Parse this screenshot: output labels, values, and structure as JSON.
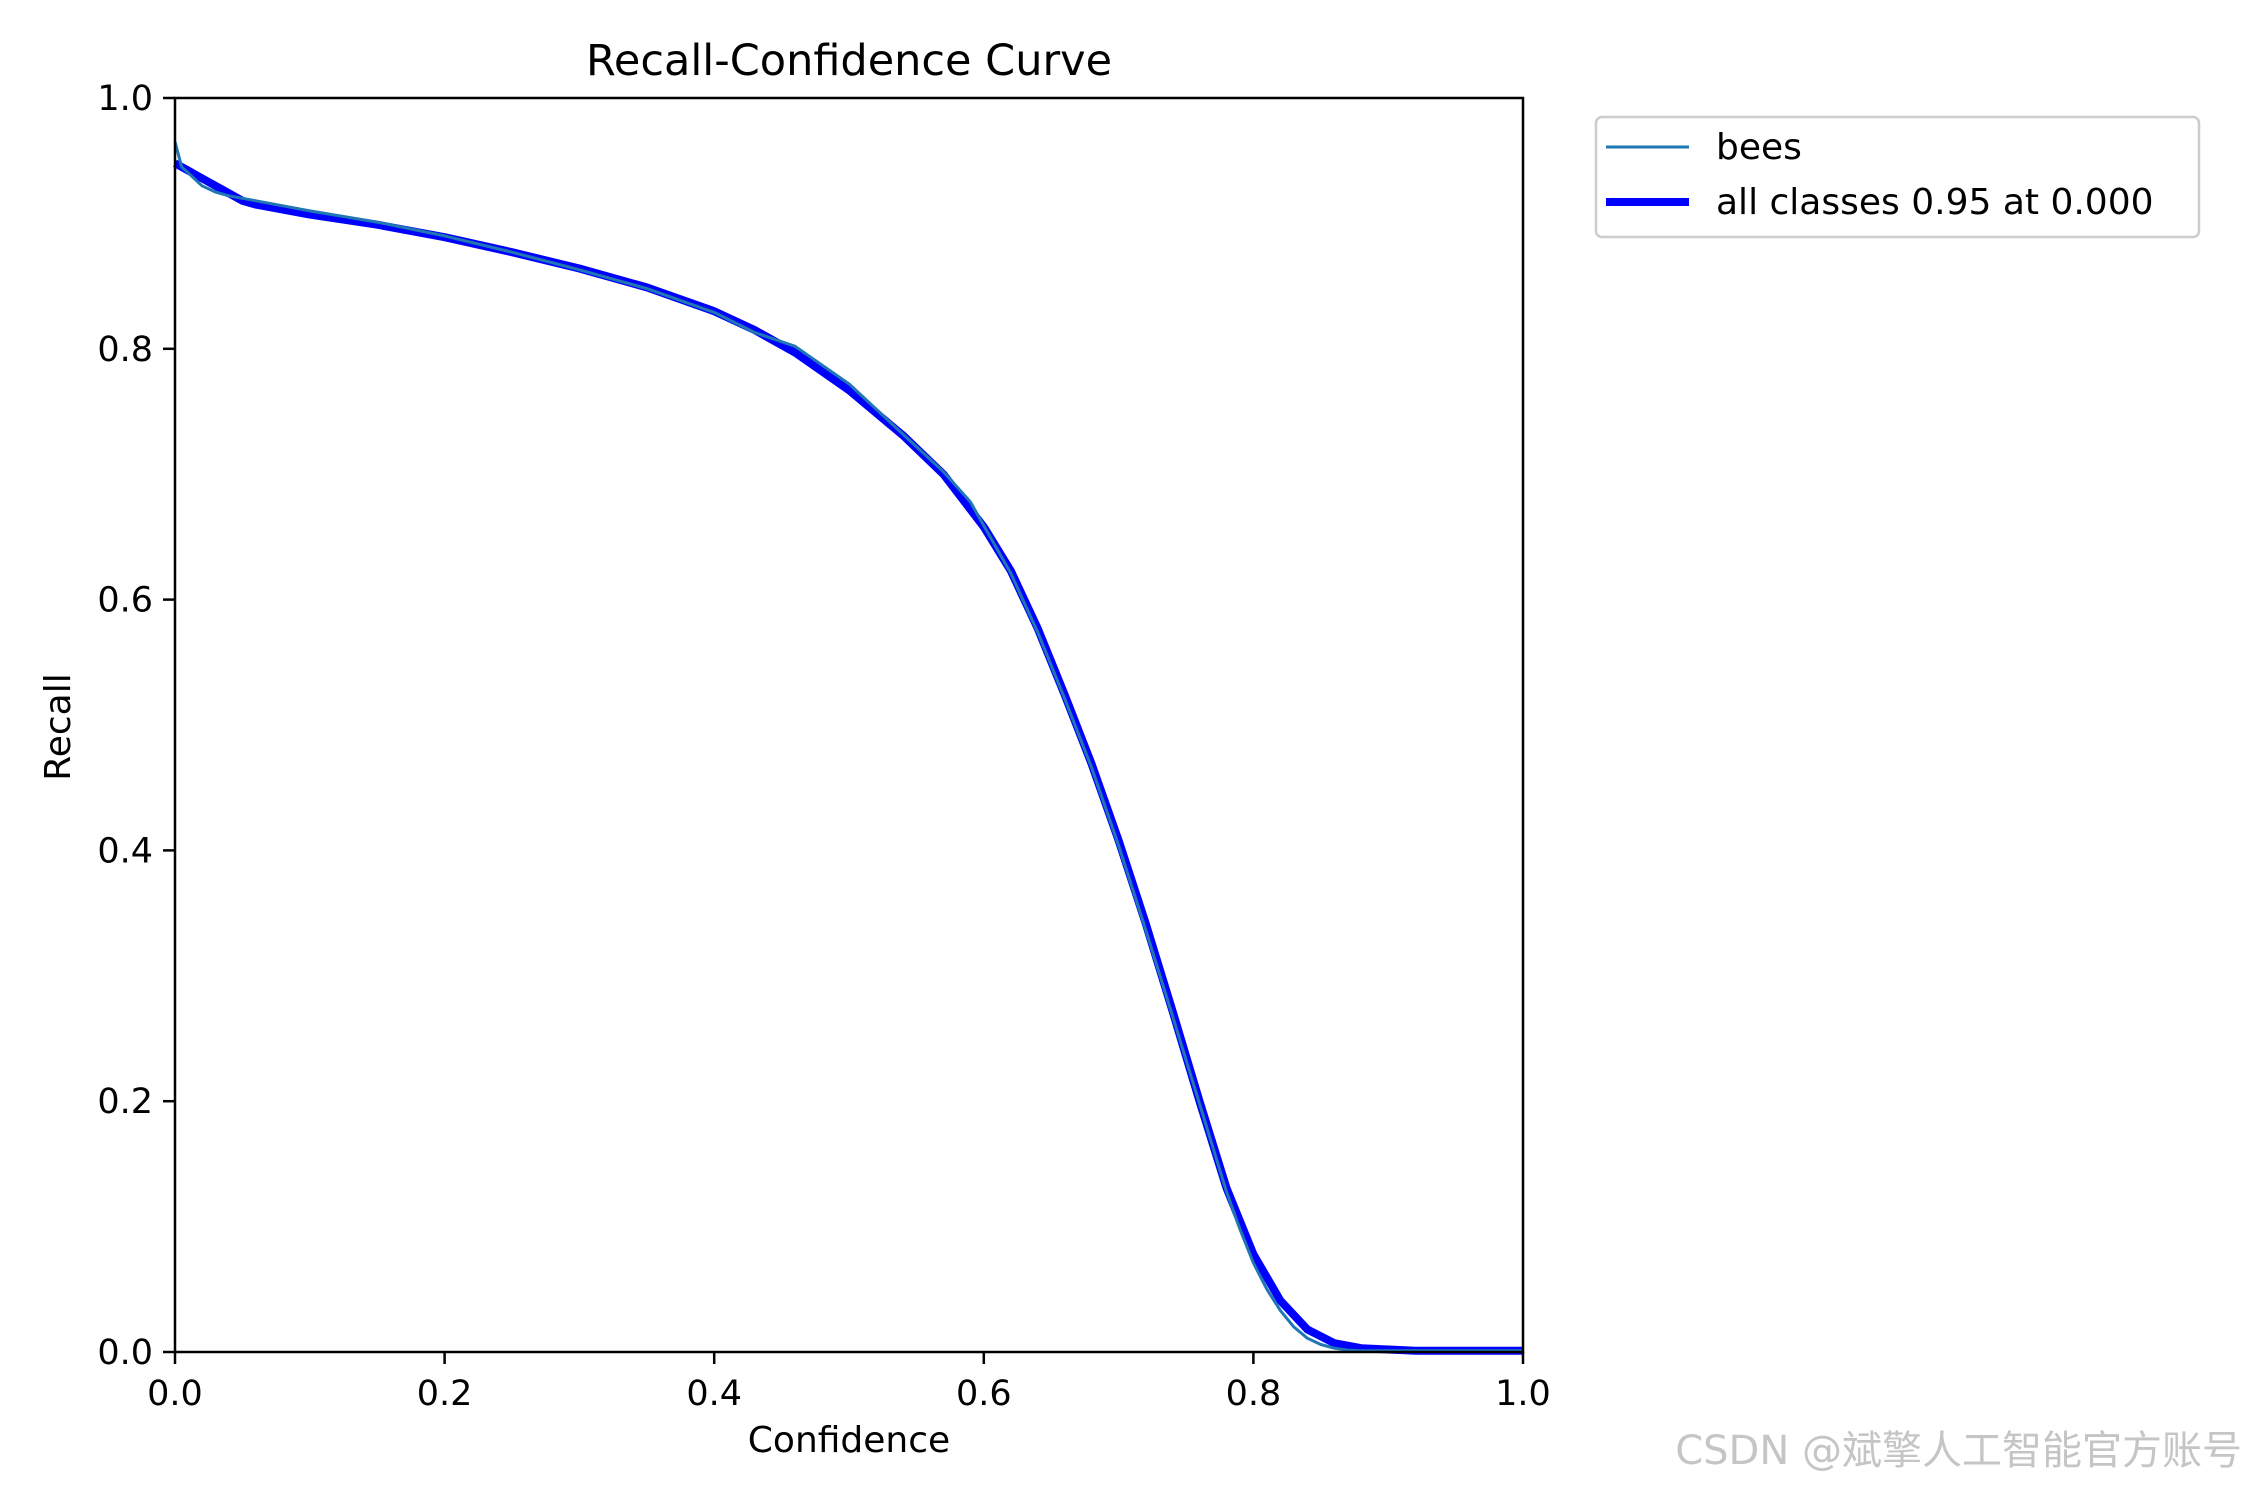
{
  "watermark": "CSDN @斌擎人工智能官方账号",
  "chart_data": {
    "type": "line",
    "title": "Recall-Confidence Curve",
    "xlabel": "Confidence",
    "ylabel": "Recall",
    "xlim": [
      0,
      1
    ],
    "ylim": [
      0,
      1
    ],
    "xticks": [
      0.0,
      0.2,
      0.4,
      0.6,
      0.8,
      1.0
    ],
    "yticks": [
      0.0,
      0.2,
      0.4,
      0.6,
      0.8,
      1.0
    ],
    "xtick_labels": [
      "0.0",
      "0.2",
      "0.4",
      "0.6",
      "0.8",
      "1.0"
    ],
    "ytick_labels": [
      "0.0",
      "0.2",
      "0.4",
      "0.6",
      "0.8",
      "1.0"
    ],
    "grid": false,
    "legend_position": "outside-top-right",
    "series": [
      {
        "name": "bees",
        "color": "#1f77b4",
        "line": "thin",
        "x": [
          0.0,
          0.005,
          0.01,
          0.02,
          0.03,
          0.04,
          0.05,
          0.06,
          0.08,
          0.1,
          0.15,
          0.2,
          0.25,
          0.3,
          0.35,
          0.4,
          0.43,
          0.46,
          0.5,
          0.54,
          0.57,
          0.59,
          0.62,
          0.64,
          0.66,
          0.68,
          0.7,
          0.72,
          0.74,
          0.76,
          0.78,
          0.79,
          0.8,
          0.81,
          0.82,
          0.83,
          0.84,
          0.85,
          0.86,
          0.87,
          0.88,
          0.9,
          0.92,
          0.95,
          1.0
        ],
        "y": [
          0.965,
          0.945,
          0.94,
          0.93,
          0.925,
          0.922,
          0.92,
          0.918,
          0.914,
          0.91,
          0.901,
          0.89,
          0.877,
          0.863,
          0.848,
          0.829,
          0.813,
          0.802,
          0.772,
          0.732,
          0.702,
          0.678,
          0.621,
          0.574,
          0.521,
          0.466,
          0.404,
          0.337,
          0.268,
          0.198,
          0.128,
          0.098,
          0.071,
          0.05,
          0.033,
          0.02,
          0.011,
          0.006,
          0.003,
          0.0015,
          0.001,
          0.001,
          0.001,
          0.001,
          0.001
        ]
      },
      {
        "name": "all classes 0.95 at 0.000",
        "color": "#0000ff",
        "line": "thick",
        "x": [
          0.0,
          0.01,
          0.02,
          0.03,
          0.04,
          0.05,
          0.06,
          0.08,
          0.1,
          0.15,
          0.2,
          0.25,
          0.3,
          0.35,
          0.4,
          0.43,
          0.46,
          0.5,
          0.54,
          0.57,
          0.6,
          0.62,
          0.64,
          0.66,
          0.68,
          0.7,
          0.72,
          0.74,
          0.76,
          0.78,
          0.8,
          0.82,
          0.84,
          0.86,
          0.88,
          0.9,
          0.92,
          0.95,
          1.0
        ],
        "y": [
          0.948,
          0.942,
          0.936,
          0.93,
          0.924,
          0.918,
          0.915,
          0.911,
          0.907,
          0.899,
          0.889,
          0.877,
          0.864,
          0.849,
          0.83,
          0.815,
          0.797,
          0.767,
          0.731,
          0.7,
          0.658,
          0.623,
          0.577,
          0.524,
          0.469,
          0.408,
          0.342,
          0.272,
          0.2,
          0.131,
          0.078,
          0.041,
          0.018,
          0.007,
          0.003,
          0.002,
          0.001,
          0.001,
          0.001
        ]
      }
    ]
  }
}
